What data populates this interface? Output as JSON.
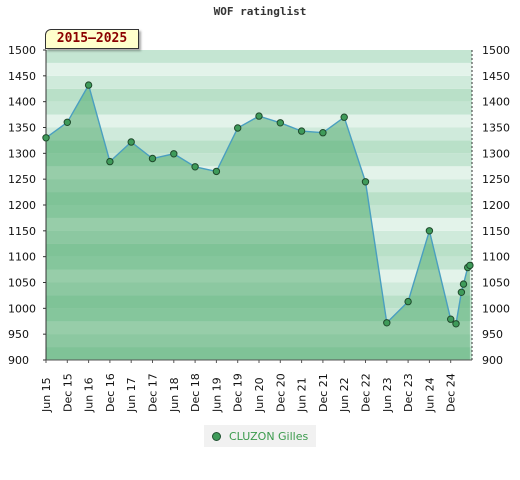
{
  "chart_data": {
    "type": "area",
    "title": "WOF ratinglist",
    "period": "2015—2025",
    "ylim": [
      900,
      1500
    ],
    "ytick_step": 50,
    "y_ticks_both_sides": true,
    "grid": "horizontal bands",
    "x_labels": [
      "Jun 15",
      "Dec 15",
      "Jun 16",
      "Dec 16",
      "Jun 17",
      "Dec 17",
      "Jun 18",
      "Dec 18",
      "Jun 19",
      "Dec 19",
      "Jun 20",
      "Dec 20",
      "Jun 21",
      "Dec 21",
      "Jun 22",
      "Dec 22",
      "Jun 23",
      "Dec 23",
      "Jun 24",
      "Dec 24"
    ],
    "series": [
      {
        "name": "CLUZON Gilles",
        "x": [
          0,
          1,
          2,
          3,
          4,
          5,
          6,
          7,
          8,
          9,
          10,
          11,
          12,
          13,
          14,
          15,
          16,
          17,
          18,
          19,
          19.25,
          19.5,
          19.6,
          19.8,
          19.9
        ],
        "values": [
          1330,
          1360,
          1432,
          1284,
          1322,
          1290,
          1299,
          1274,
          1265,
          1349,
          1372,
          1359,
          1343,
          1340,
          1370,
          1245,
          972,
          1013,
          1150,
          979,
          970,
          1031,
          1047,
          1079,
          1083
        ]
      }
    ],
    "legend_position": "bottom-center",
    "colors": {
      "line": "#4a9fc0",
      "area": "#3aa05a",
      "marker": "#3f9b5a",
      "marker_stroke": "#1f4a2c",
      "band_dark": "#b5dec4",
      "band_light": "#eef8f1",
      "legend_text": "#3a9a4c",
      "period_text": "#8b0000",
      "period_bg": "#ffffcc"
    }
  }
}
